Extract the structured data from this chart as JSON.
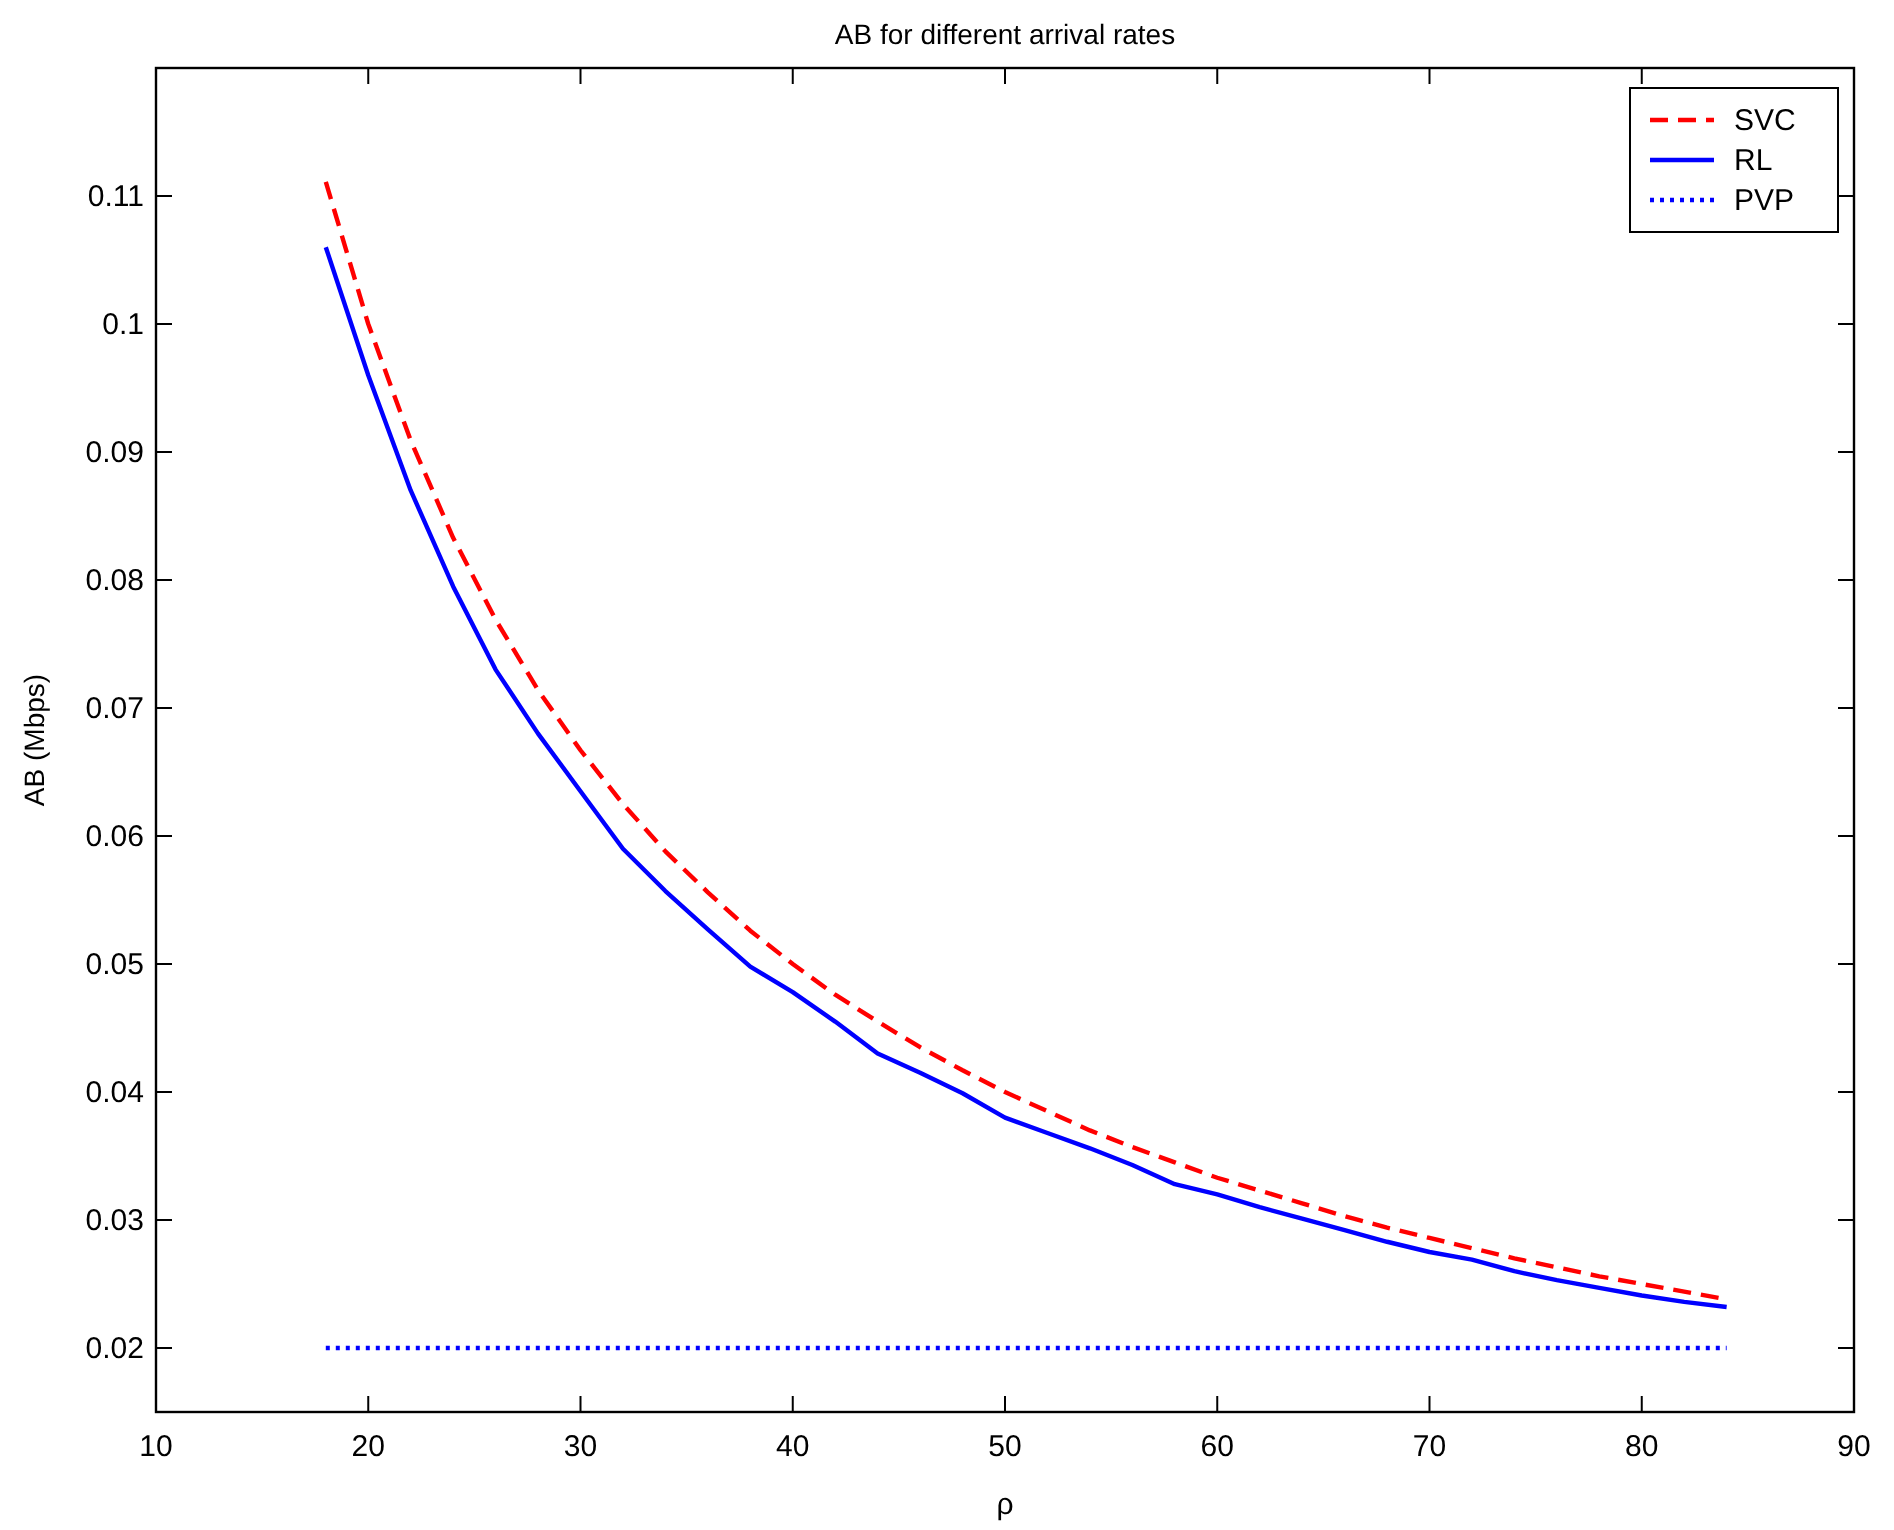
{
  "chart_data": {
    "type": "line",
    "title": "AB for different arrival rates",
    "xlabel": "ρ",
    "ylabel": "AB (Mbps)",
    "x": [
      18,
      20,
      22,
      24,
      26,
      28,
      30,
      32,
      34,
      36,
      38,
      40,
      42,
      44,
      46,
      48,
      50,
      52,
      54,
      56,
      58,
      60,
      62,
      64,
      66,
      68,
      70,
      72,
      74,
      76,
      78,
      80,
      82,
      84
    ],
    "series": [
      {
        "name": "SVC",
        "color": "#ff0000",
        "line_style": "dashed",
        "values": [
          0.1111,
          0.1,
          0.0909,
          0.0833,
          0.0769,
          0.0714,
          0.0667,
          0.0625,
          0.0588,
          0.0556,
          0.0526,
          0.05,
          0.0476,
          0.0455,
          0.0435,
          0.0417,
          0.04,
          0.0385,
          0.037,
          0.0357,
          0.0345,
          0.0333,
          0.0323,
          0.0313,
          0.0303,
          0.0294,
          0.0286,
          0.0278,
          0.027,
          0.0263,
          0.0256,
          0.025,
          0.0244,
          0.0238
        ]
      },
      {
        "name": "RL",
        "color": "#0000ff",
        "line_style": "solid",
        "values": [
          0.106,
          0.096,
          0.087,
          0.0795,
          0.073,
          0.068,
          0.0635,
          0.059,
          0.0557,
          0.0527,
          0.0498,
          0.0478,
          0.0455,
          0.043,
          0.0415,
          0.0399,
          0.038,
          0.0368,
          0.0356,
          0.0343,
          0.0328,
          0.032,
          0.031,
          0.0301,
          0.0292,
          0.0283,
          0.0275,
          0.0269,
          0.026,
          0.0253,
          0.0247,
          0.0241,
          0.0236,
          0.0232
        ]
      },
      {
        "name": "PVP",
        "color": "#0000ff",
        "line_style": "dotted",
        "values": [
          0.02,
          0.02,
          0.02,
          0.02,
          0.02,
          0.02,
          0.02,
          0.02,
          0.02,
          0.02,
          0.02,
          0.02,
          0.02,
          0.02,
          0.02,
          0.02,
          0.02,
          0.02,
          0.02,
          0.02,
          0.02,
          0.02,
          0.02,
          0.02,
          0.02,
          0.02,
          0.02,
          0.02,
          0.02,
          0.02,
          0.02,
          0.02,
          0.02,
          0.02
        ]
      }
    ],
    "xlim": [
      10,
      90
    ],
    "ylim": [
      0.015,
      0.12
    ],
    "xticks": [
      10,
      20,
      30,
      40,
      50,
      60,
      70,
      80,
      90
    ],
    "yticks": [
      0.02,
      0.03,
      0.04,
      0.05,
      0.06,
      0.07,
      0.08,
      0.09,
      0.1,
      0.11
    ],
    "grid": false,
    "legend": "top right"
  }
}
